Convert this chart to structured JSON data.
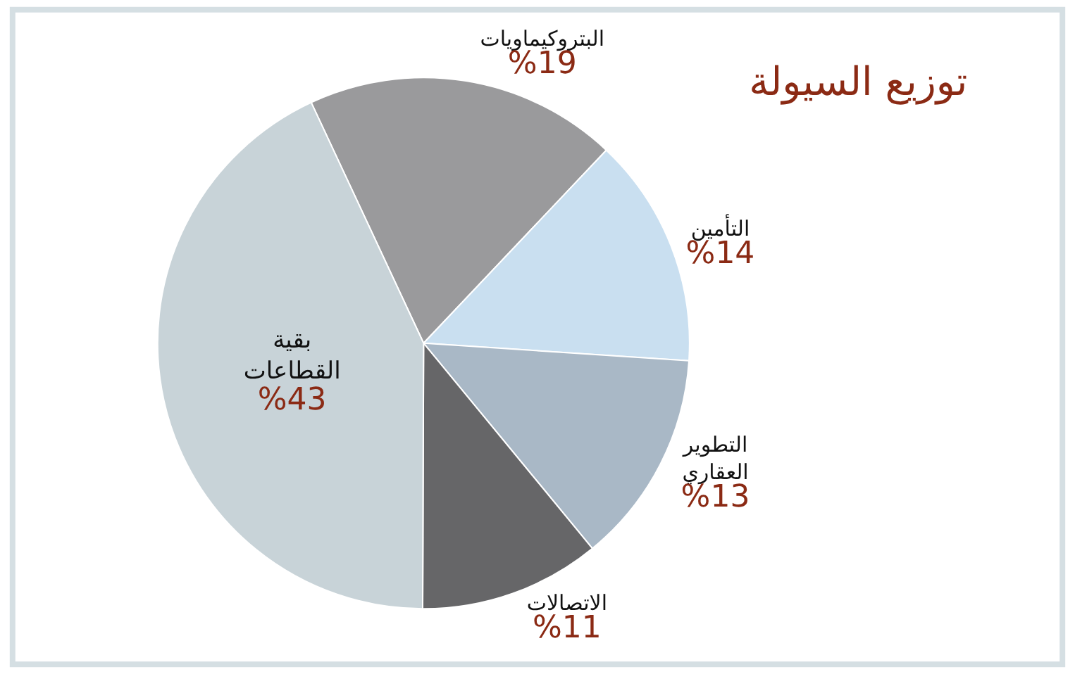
{
  "chart_data": {
    "type": "pie",
    "title": "توزيع السيولة",
    "categories": [
      "البتروكيماويات",
      "التأمين",
      "التطوير العقاري",
      "الاتصالات",
      "بقية القطاعات"
    ],
    "values": [
      19,
      14,
      13,
      11,
      43
    ],
    "value_labels": [
      "%19",
      "%14",
      "%13",
      "%11",
      "%43"
    ],
    "colors": [
      "#9a9a9c",
      "#c9dff0",
      "#a9b8c6",
      "#666668",
      "#c8d3d8"
    ],
    "legend": false
  }
}
